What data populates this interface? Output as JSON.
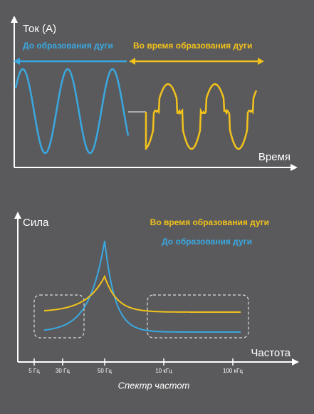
{
  "top": {
    "y_label": "Ток (A)",
    "phase_before": "До образования дуги",
    "phase_during": "Во время образования дуги",
    "x_label": "Время"
  },
  "bottom": {
    "y_label": "Сила",
    "legend_during": "Во время образования дуги",
    "legend_before": "До образования дуги",
    "x_label": "Частота",
    "ticks": [
      "5 Гц",
      "30 Гц",
      "50 Гц",
      "10 кГц",
      "100 кГц"
    ],
    "caption": "Спектр частот"
  }
}
